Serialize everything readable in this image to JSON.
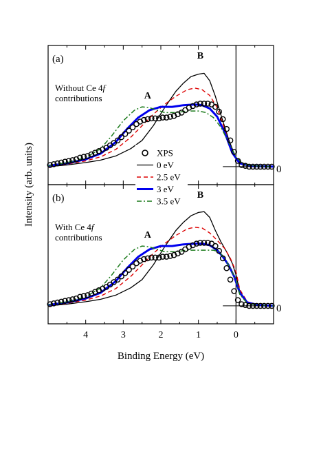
{
  "chart_data": [
    {
      "type": "line",
      "panel_label": "(a)",
      "annotation": {
        "line1_prefix": "Without Ce 4",
        "line1_italic": "f",
        "line2": "contributions"
      },
      "peak_labels": [
        {
          "text": "A",
          "x": 2.35,
          "y": 0.83
        },
        {
          "text": "B",
          "x": 0.95,
          "y": 1.32
        }
      ],
      "zero_label": "0",
      "xlim": [
        5.0,
        -1.0
      ],
      "ylim": [
        -0.22,
        1.48
      ],
      "series": [
        {
          "name": "XPS",
          "style": "circles",
          "color": "#000000",
          "x": [
            4.95,
            4.85,
            4.75,
            4.65,
            4.55,
            4.45,
            4.35,
            4.25,
            4.15,
            4.05,
            3.95,
            3.85,
            3.75,
            3.65,
            3.55,
            3.45,
            3.35,
            3.25,
            3.15,
            3.05,
            2.95,
            2.85,
            2.75,
            2.65,
            2.55,
            2.45,
            2.35,
            2.25,
            2.15,
            2.05,
            1.95,
            1.85,
            1.75,
            1.65,
            1.55,
            1.45,
            1.35,
            1.25,
            1.15,
            1.05,
            0.95,
            0.85,
            0.75,
            0.65,
            0.55,
            0.45,
            0.35,
            0.25,
            0.15,
            0.05,
            -0.05,
            -0.15,
            -0.25,
            -0.35,
            -0.45,
            -0.55,
            -0.65,
            -0.75,
            -0.85,
            -0.95
          ],
          "y": [
            0.02,
            0.03,
            0.04,
            0.05,
            0.06,
            0.07,
            0.08,
            0.09,
            0.11,
            0.12,
            0.13,
            0.15,
            0.17,
            0.19,
            0.21,
            0.23,
            0.26,
            0.29,
            0.32,
            0.36,
            0.4,
            0.44,
            0.48,
            0.52,
            0.55,
            0.57,
            0.58,
            0.59,
            0.59,
            0.59,
            0.6,
            0.6,
            0.61,
            0.62,
            0.64,
            0.66,
            0.69,
            0.72,
            0.74,
            0.76,
            0.77,
            0.77,
            0.77,
            0.76,
            0.73,
            0.67,
            0.58,
            0.46,
            0.32,
            0.18,
            0.07,
            0.02,
            0.01,
            0.0,
            0.0,
            0.0,
            0.0,
            0.0,
            0.0,
            0.0
          ]
        },
        {
          "name": "0 eV",
          "style": "solid-thin",
          "color": "#000000",
          "x": [
            5.0,
            4.5,
            4.0,
            3.6,
            3.2,
            2.8,
            2.5,
            2.2,
            1.9,
            1.6,
            1.4,
            1.2,
            1.0,
            0.85,
            0.7,
            0.55,
            0.4,
            0.2,
            0.0,
            -0.2,
            -0.5,
            -1.0
          ],
          "y": [
            0.0,
            0.02,
            0.05,
            0.08,
            0.13,
            0.22,
            0.32,
            0.5,
            0.72,
            0.92,
            1.02,
            1.1,
            1.13,
            1.14,
            1.05,
            0.86,
            0.63,
            0.34,
            0.1,
            0.02,
            0.0,
            0.0
          ]
        },
        {
          "name": "2.5 eV",
          "style": "dashed",
          "color": "#dd0000",
          "x": [
            5.0,
            4.5,
            4.0,
            3.6,
            3.2,
            2.8,
            2.5,
            2.2,
            1.9,
            1.6,
            1.3,
            1.1,
            0.9,
            0.7,
            0.5,
            0.3,
            0.1,
            -0.1,
            -0.4,
            -1.0
          ],
          "y": [
            0.0,
            0.03,
            0.07,
            0.12,
            0.21,
            0.36,
            0.5,
            0.64,
            0.76,
            0.86,
            0.94,
            0.96,
            0.94,
            0.87,
            0.72,
            0.46,
            0.17,
            0.04,
            0.01,
            0.0
          ]
        },
        {
          "name": "3 eV",
          "style": "solid-thick",
          "color": "#0000ee",
          "x": [
            5.0,
            4.5,
            4.0,
            3.6,
            3.2,
            2.9,
            2.6,
            2.3,
            2.0,
            1.7,
            1.4,
            1.1,
            0.9,
            0.7,
            0.5,
            0.3,
            0.1,
            -0.1,
            -0.4,
            -1.0
          ],
          "y": [
            0.01,
            0.04,
            0.09,
            0.16,
            0.3,
            0.46,
            0.6,
            0.69,
            0.73,
            0.73,
            0.75,
            0.76,
            0.75,
            0.71,
            0.61,
            0.42,
            0.17,
            0.04,
            0.01,
            0.0
          ]
        },
        {
          "name": "3.5 eV",
          "style": "dash-dot",
          "color": "#1a7a1a",
          "x": [
            5.0,
            4.5,
            4.0,
            3.6,
            3.3,
            3.0,
            2.7,
            2.5,
            2.3,
            2.1,
            1.9,
            1.6,
            1.3,
            1.0,
            0.8,
            0.6,
            0.4,
            0.2,
            0.0,
            -0.2,
            -0.5,
            -1.0
          ],
          "y": [
            0.01,
            0.05,
            0.11,
            0.22,
            0.38,
            0.56,
            0.69,
            0.73,
            0.72,
            0.69,
            0.66,
            0.66,
            0.68,
            0.68,
            0.66,
            0.6,
            0.48,
            0.3,
            0.12,
            0.03,
            0.01,
            0.0
          ]
        }
      ]
    },
    {
      "type": "line",
      "panel_label": "(b)",
      "annotation": {
        "line1_prefix": "With Ce 4",
        "line1_italic": "f",
        "line2": "contributions"
      },
      "peak_labels": [
        {
          "text": "A",
          "x": 2.35,
          "y": 0.83
        },
        {
          "text": "B",
          "x": 0.95,
          "y": 1.32
        }
      ],
      "zero_label": "0",
      "xlim": [
        5.0,
        -1.0
      ],
      "ylim": [
        -0.22,
        1.48
      ],
      "series": [
        {
          "name": "XPS",
          "style": "circles",
          "color": "#000000",
          "x": [
            4.95,
            4.85,
            4.75,
            4.65,
            4.55,
            4.45,
            4.35,
            4.25,
            4.15,
            4.05,
            3.95,
            3.85,
            3.75,
            3.65,
            3.55,
            3.45,
            3.35,
            3.25,
            3.15,
            3.05,
            2.95,
            2.85,
            2.75,
            2.65,
            2.55,
            2.45,
            2.35,
            2.25,
            2.15,
            2.05,
            1.95,
            1.85,
            1.75,
            1.65,
            1.55,
            1.45,
            1.35,
            1.25,
            1.15,
            1.05,
            0.95,
            0.85,
            0.75,
            0.65,
            0.55,
            0.45,
            0.35,
            0.25,
            0.15,
            0.05,
            -0.05,
            -0.15,
            -0.25,
            -0.35,
            -0.45,
            -0.55,
            -0.65,
            -0.75,
            -0.85,
            -0.95
          ],
          "y": [
            0.02,
            0.03,
            0.04,
            0.05,
            0.06,
            0.07,
            0.08,
            0.09,
            0.11,
            0.12,
            0.13,
            0.15,
            0.17,
            0.19,
            0.21,
            0.23,
            0.26,
            0.29,
            0.32,
            0.36,
            0.4,
            0.44,
            0.48,
            0.52,
            0.55,
            0.57,
            0.58,
            0.59,
            0.59,
            0.59,
            0.6,
            0.6,
            0.61,
            0.62,
            0.64,
            0.66,
            0.69,
            0.72,
            0.74,
            0.76,
            0.77,
            0.77,
            0.77,
            0.76,
            0.73,
            0.67,
            0.58,
            0.46,
            0.32,
            0.18,
            0.07,
            0.02,
            0.01,
            0.0,
            0.0,
            0.0,
            0.0,
            0.0,
            0.0,
            0.0
          ]
        },
        {
          "name": "0 eV",
          "style": "solid-thin",
          "color": "#000000",
          "x": [
            5.0,
            4.5,
            4.0,
            3.6,
            3.2,
            2.8,
            2.5,
            2.2,
            1.9,
            1.6,
            1.4,
            1.2,
            1.0,
            0.85,
            0.7,
            0.55,
            0.4,
            0.25,
            0.1,
            0.0,
            -0.1,
            -0.3,
            -0.6,
            -1.0
          ],
          "y": [
            0.0,
            0.02,
            0.05,
            0.08,
            0.13,
            0.22,
            0.32,
            0.5,
            0.72,
            0.92,
            1.02,
            1.1,
            1.14,
            1.15,
            1.08,
            0.92,
            0.78,
            0.66,
            0.52,
            0.38,
            0.18,
            0.04,
            0.01,
            0.0
          ]
        },
        {
          "name": "2.5 eV",
          "style": "dashed",
          "color": "#dd0000",
          "x": [
            5.0,
            4.5,
            4.0,
            3.6,
            3.2,
            2.8,
            2.5,
            2.2,
            1.9,
            1.6,
            1.3,
            1.1,
            0.9,
            0.7,
            0.5,
            0.3,
            0.15,
            0.0,
            -0.1,
            -0.3,
            -0.6,
            -1.0
          ],
          "y": [
            0.0,
            0.03,
            0.07,
            0.12,
            0.21,
            0.36,
            0.5,
            0.64,
            0.76,
            0.86,
            0.94,
            0.96,
            0.95,
            0.89,
            0.8,
            0.7,
            0.58,
            0.42,
            0.2,
            0.05,
            0.01,
            0.0
          ]
        },
        {
          "name": "3 eV",
          "style": "solid-thick",
          "color": "#0000ee",
          "x": [
            5.0,
            4.5,
            4.0,
            3.6,
            3.2,
            2.9,
            2.6,
            2.3,
            2.0,
            1.7,
            1.4,
            1.1,
            0.9,
            0.7,
            0.5,
            0.35,
            0.2,
            0.05,
            -0.1,
            -0.3,
            -0.6,
            -1.0
          ],
          "y": [
            0.01,
            0.04,
            0.09,
            0.16,
            0.3,
            0.46,
            0.6,
            0.69,
            0.73,
            0.73,
            0.75,
            0.76,
            0.76,
            0.74,
            0.68,
            0.6,
            0.5,
            0.36,
            0.16,
            0.04,
            0.01,
            0.0
          ]
        },
        {
          "name": "3.5 eV",
          "style": "dash-dot",
          "color": "#1a7a1a",
          "x": [
            5.0,
            4.5,
            4.0,
            3.6,
            3.3,
            3.0,
            2.7,
            2.5,
            2.3,
            2.1,
            1.9,
            1.6,
            1.3,
            1.0,
            0.8,
            0.6,
            0.45,
            0.3,
            0.15,
            0.0,
            -0.1,
            -0.3,
            -0.6,
            -1.0
          ],
          "y": [
            0.01,
            0.05,
            0.11,
            0.22,
            0.38,
            0.56,
            0.69,
            0.73,
            0.72,
            0.69,
            0.66,
            0.66,
            0.68,
            0.68,
            0.68,
            0.68,
            0.66,
            0.58,
            0.46,
            0.32,
            0.14,
            0.03,
            0.01,
            0.0
          ]
        }
      ]
    }
  ],
  "legend": [
    {
      "label": "XPS",
      "style": "circles",
      "color": "#000000"
    },
    {
      "label": "0 eV",
      "style": "solid-thin",
      "color": "#000000"
    },
    {
      "label": "2.5 eV",
      "style": "dashed",
      "color": "#dd0000"
    },
    {
      "label": "3 eV",
      "style": "solid-thick",
      "color": "#0000ee"
    },
    {
      "label": "3.5 eV",
      "style": "dash-dot",
      "color": "#1a7a1a"
    }
  ],
  "x_axis": {
    "label": "Binding Energy (eV)",
    "ticks": [
      4,
      3,
      2,
      1,
      0
    ],
    "tick_labels": [
      "4",
      "3",
      "2",
      "1",
      "0"
    ]
  },
  "y_axis": {
    "label": "Intensity (arb. units)"
  }
}
